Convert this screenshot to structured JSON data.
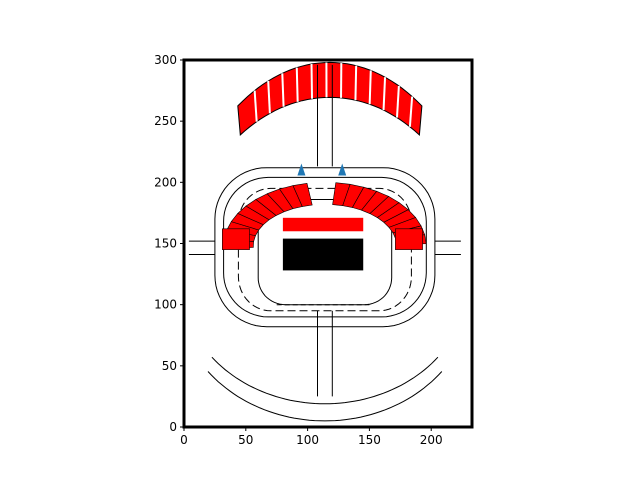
{
  "chart_data": {
    "type": "map",
    "title": "",
    "xlabel": "",
    "ylabel": "",
    "xlim": [
      0,
      233
    ],
    "ylim": [
      0,
      300
    ],
    "x_ticks": [
      0,
      50,
      100,
      150,
      200
    ],
    "y_ticks": [
      0,
      50,
      100,
      150,
      200,
      250,
      300
    ],
    "x_tick_labels": [
      "0",
      "50",
      "100",
      "150",
      "200"
    ],
    "y_tick_labels": [
      "0",
      "50",
      "100",
      "150",
      "200",
      "250",
      "300"
    ],
    "grid": false,
    "colors": {
      "seats": "#ff0000",
      "stage": "#000000",
      "markers": "#1f77b4",
      "outline": "#000000"
    },
    "stage": {
      "x": [
        80,
        145
      ],
      "y": [
        128,
        154
      ]
    },
    "stage_front": {
      "x": [
        80,
        145
      ],
      "y": [
        160,
        171
      ]
    },
    "markers": [
      {
        "x": 95,
        "y": 208
      },
      {
        "x": 128,
        "y": 208
      }
    ]
  }
}
